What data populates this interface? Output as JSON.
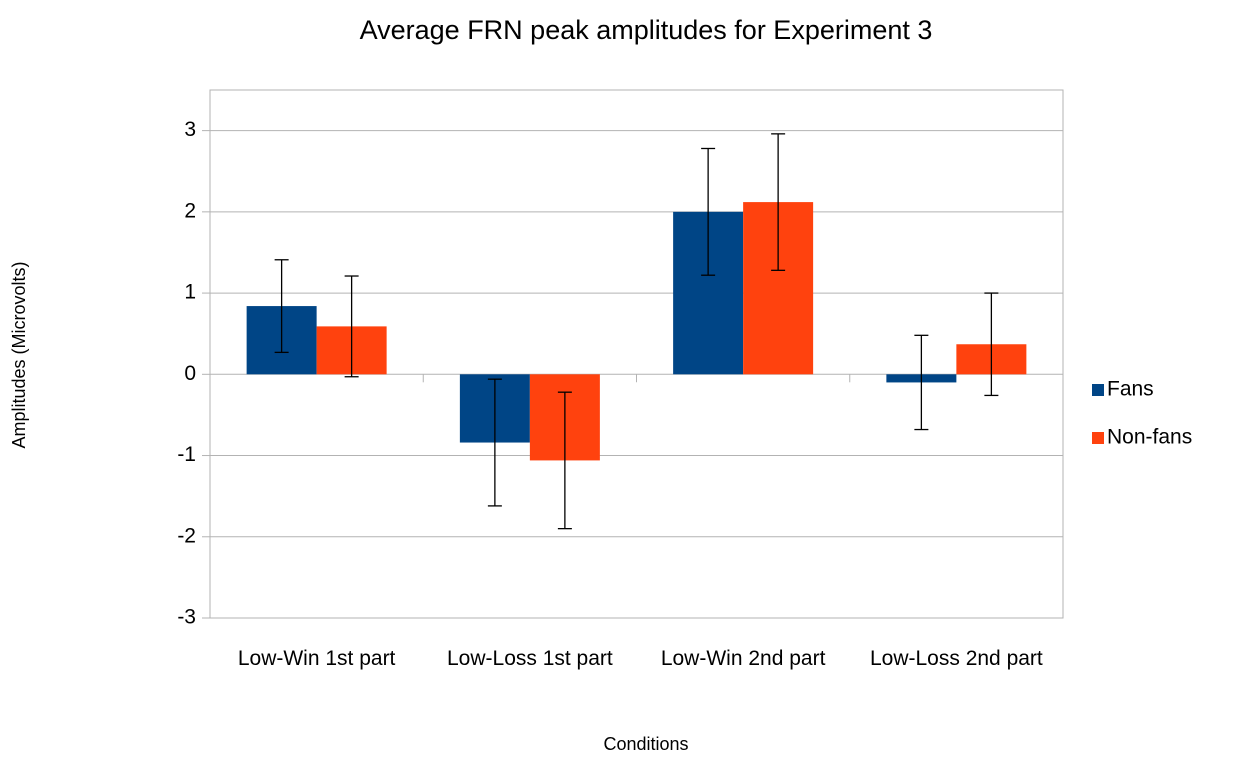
{
  "chart_data": {
    "type": "bar",
    "title": "Average FRN peak amplitudes for Experiment 3",
    "x_label": "Conditions",
    "y_label": "Amplitudes (Microvolts)",
    "categories": [
      "Low-Win 1st part",
      "Low-Loss 1st part",
      "Low-Win 2nd part",
      "Low-Loss 2nd part"
    ],
    "series": [
      {
        "name": "Fans",
        "color": "#004586",
        "values": [
          0.84,
          -0.84,
          2.0,
          -0.1
        ],
        "errors": [
          0.57,
          0.78,
          0.78,
          0.58
        ]
      },
      {
        "name": "Non-fans",
        "color": "#ff420e",
        "values": [
          0.59,
          -1.06,
          2.12,
          0.37
        ],
        "errors": [
          0.62,
          0.84,
          0.84,
          0.63
        ]
      }
    ],
    "ylim": [
      -3,
      3.5
    ],
    "yticks": [
      -3,
      -2,
      -1,
      0,
      1,
      2,
      3
    ],
    "grid": true,
    "legend": "right"
  }
}
